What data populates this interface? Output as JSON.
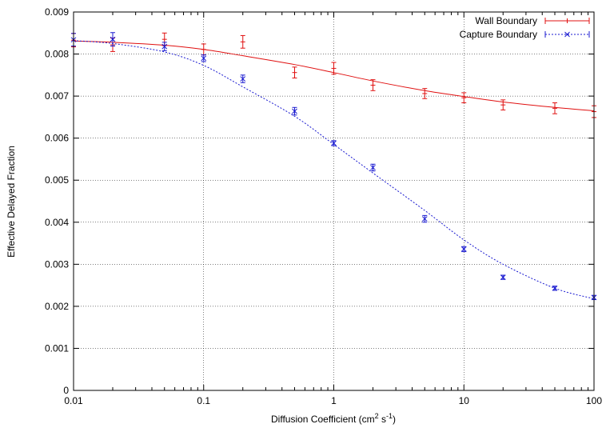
{
  "chart_data": {
    "type": "scatter",
    "xlabel_prefix": "Diffusion Coefficient (cm",
    "xlabel_sup1": "2",
    "xlabel_mid": " s",
    "xlabel_sup2": "-1",
    "xlabel_suffix": ")",
    "ylabel": "Effective Delayed Fraction",
    "x_scale": "log",
    "xlim": [
      0.01,
      100
    ],
    "ylim": [
      0,
      0.009
    ],
    "x_ticks": [
      {
        "value": 0.01,
        "label": "0.01"
      },
      {
        "value": 0.1,
        "label": "0.1"
      },
      {
        "value": 1,
        "label": "1"
      },
      {
        "value": 10,
        "label": "10"
      },
      {
        "value": 100,
        "label": "100"
      }
    ],
    "y_ticks": [
      {
        "value": 0,
        "label": "0"
      },
      {
        "value": 0.001,
        "label": "0.001"
      },
      {
        "value": 0.002,
        "label": "0.002"
      },
      {
        "value": 0.003,
        "label": "0.003"
      },
      {
        "value": 0.004,
        "label": "0.004"
      },
      {
        "value": 0.005,
        "label": "0.005"
      },
      {
        "value": 0.006,
        "label": "0.006"
      },
      {
        "value": 0.007,
        "label": "0.007"
      },
      {
        "value": 0.008,
        "label": "0.008"
      },
      {
        "value": 0.009,
        "label": "0.009"
      }
    ],
    "grid": true,
    "legend_position": "top-right",
    "series": [
      {
        "name": "Wall Boundary",
        "color": "#e01010",
        "marker": "plus-errorbar",
        "line_style": "solid",
        "x": [
          0.01,
          0.02,
          0.05,
          0.1,
          0.2,
          0.5,
          1,
          2,
          5,
          10,
          20,
          50,
          100
        ],
        "y": [
          0.00833,
          0.00822,
          0.00835,
          0.00811,
          0.00829,
          0.00756,
          0.00766,
          0.00726,
          0.00706,
          0.00696,
          0.00679,
          0.00671,
          0.00663
        ],
        "err": [
          0.00016,
          0.00016,
          0.00015,
          0.00013,
          0.00015,
          0.00013,
          0.00014,
          0.00013,
          0.00012,
          0.00012,
          0.00012,
          0.00013,
          0.00014
        ],
        "fit": [
          [
            0.01,
            0.00831
          ],
          [
            0.02,
            0.00828
          ],
          [
            0.05,
            0.00821
          ],
          [
            0.1,
            0.00811
          ],
          [
            0.2,
            0.00796
          ],
          [
            0.5,
            0.00775
          ],
          [
            1,
            0.00756
          ],
          [
            2,
            0.00736
          ],
          [
            5,
            0.00713
          ],
          [
            10,
            0.00699
          ],
          [
            20,
            0.00686
          ],
          [
            50,
            0.00673
          ],
          [
            100,
            0.00665
          ]
        ]
      },
      {
        "name": "Capture Boundary",
        "color": "#1a1ad0",
        "marker": "x-errorbar",
        "line_style": "dotted",
        "x": [
          0.01,
          0.02,
          0.05,
          0.1,
          0.2,
          0.5,
          1,
          2,
          5,
          10,
          20,
          50,
          100
        ],
        "y": [
          0.00834,
          0.00835,
          0.00818,
          0.0079,
          0.00741,
          0.00664,
          0.00588,
          0.0053,
          0.00408,
          0.00336,
          0.00269,
          0.00243,
          0.00221
        ],
        "err": [
          0.00015,
          0.00016,
          0.0001,
          8e-05,
          9e-05,
          9e-05,
          6e-05,
          8e-05,
          8e-05,
          6e-05,
          5e-05,
          5e-05,
          5e-05
        ],
        "fit": [
          [
            0.01,
            0.00832
          ],
          [
            0.02,
            0.00825
          ],
          [
            0.05,
            0.00805
          ],
          [
            0.1,
            0.00773
          ],
          [
            0.2,
            0.00722
          ],
          [
            0.5,
            0.00652
          ],
          [
            1,
            0.00585
          ],
          [
            2,
            0.00517
          ],
          [
            5,
            0.00428
          ],
          [
            10,
            0.00358
          ],
          [
            20,
            0.003
          ],
          [
            50,
            0.00243
          ],
          [
            100,
            0.00218
          ]
        ]
      }
    ]
  }
}
